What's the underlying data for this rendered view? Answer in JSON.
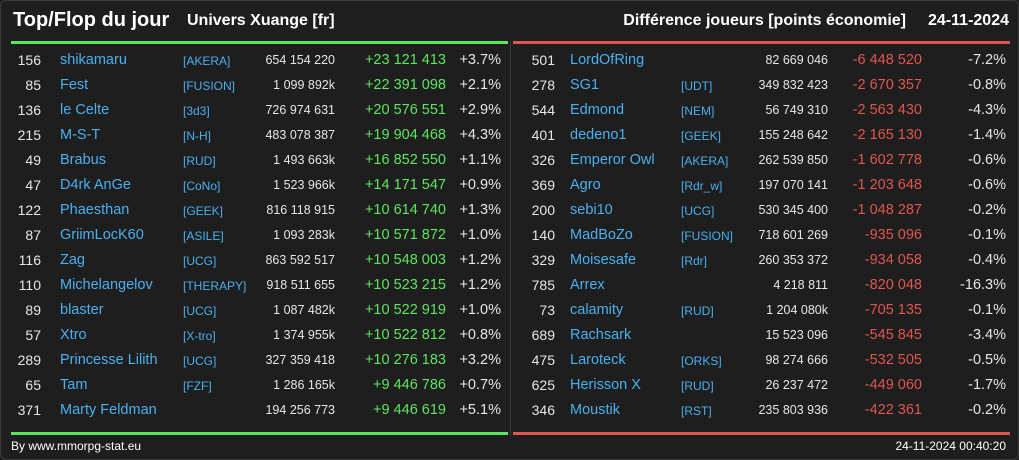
{
  "header": {
    "title": "Top/Flop du jour",
    "universe": "Univers Xuange [fr]",
    "subtitle": "Différence joueurs [points économie]",
    "date": "24-11-2024"
  },
  "colors": {
    "gain": "#5de65d",
    "loss": "#e05550",
    "name": "#4ab0ef",
    "background": "#1e1e1e"
  },
  "top": [
    {
      "rank": "156",
      "name": "shikamaru",
      "ally": "[AKERA]",
      "points": "654 154 220",
      "delta": "+23 121 413",
      "pct": "+3.7%"
    },
    {
      "rank": "85",
      "name": "Fest",
      "ally": "[FUSION]",
      "points": "1 099 892k",
      "delta": "+22 391 098",
      "pct": "+2.1%"
    },
    {
      "rank": "136",
      "name": "le Celte",
      "ally": "[3d3]",
      "points": "726 974 631",
      "delta": "+20 576 551",
      "pct": "+2.9%"
    },
    {
      "rank": "215",
      "name": "M-S-T",
      "ally": "[N-H]",
      "points": "483 078 387",
      "delta": "+19 904 468",
      "pct": "+4.3%"
    },
    {
      "rank": "49",
      "name": "Brabus",
      "ally": "[RUD]",
      "points": "1 493 663k",
      "delta": "+16 852 550",
      "pct": "+1.1%"
    },
    {
      "rank": "47",
      "name": "D4rk AnGe",
      "ally": "[CoNo]",
      "points": "1 523 966k",
      "delta": "+14 171 547",
      "pct": "+0.9%"
    },
    {
      "rank": "122",
      "name": "Phaesthan",
      "ally": "[GEEK]",
      "points": "816 118 915",
      "delta": "+10 614 740",
      "pct": "+1.3%"
    },
    {
      "rank": "87",
      "name": "GriimLocK60",
      "ally": "[ASILE]",
      "points": "1 093 283k",
      "delta": "+10 571 872",
      "pct": "+1.0%"
    },
    {
      "rank": "116",
      "name": "Zag",
      "ally": "[UCG]",
      "points": "863 592 517",
      "delta": "+10 548 003",
      "pct": "+1.2%"
    },
    {
      "rank": "110",
      "name": "Michelangelov",
      "ally": "[THERAPY]",
      "points": "918 511 655",
      "delta": "+10 523 215",
      "pct": "+1.2%"
    },
    {
      "rank": "89",
      "name": "blaster",
      "ally": "[UCG]",
      "points": "1 087 482k",
      "delta": "+10 522 919",
      "pct": "+1.0%"
    },
    {
      "rank": "57",
      "name": "Xtro",
      "ally": "[X-tro]",
      "points": "1 374 955k",
      "delta": "+10 522 812",
      "pct": "+0.8%"
    },
    {
      "rank": "289",
      "name": "Princesse Lilith",
      "ally": "[UCG]",
      "points": "327 359 418",
      "delta": "+10 276 183",
      "pct": "+3.2%"
    },
    {
      "rank": "65",
      "name": "Tam",
      "ally": "[FZF]",
      "points": "1 286 165k",
      "delta": "+9 446 786",
      "pct": "+0.7%"
    },
    {
      "rank": "371",
      "name": "Marty Feldman",
      "ally": "",
      "points": "194 256 773",
      "delta": "+9 446 619",
      "pct": "+5.1%"
    }
  ],
  "flop": [
    {
      "rank": "501",
      "name": "LordOfRing",
      "ally": "",
      "points": "82 669 046",
      "delta": "-6 448 520",
      "pct": "-7.2%"
    },
    {
      "rank": "278",
      "name": "SG1",
      "ally": "[UDT]",
      "points": "349 832 423",
      "delta": "-2 670 357",
      "pct": "-0.8%"
    },
    {
      "rank": "544",
      "name": "Edmond",
      "ally": "[NEM]",
      "points": "56 749 310",
      "delta": "-2 563 430",
      "pct": "-4.3%"
    },
    {
      "rank": "401",
      "name": "dedeno1",
      "ally": "[GEEK]",
      "points": "155 248 642",
      "delta": "-2 165 130",
      "pct": "-1.4%"
    },
    {
      "rank": "326",
      "name": "Emperor Owl",
      "ally": "[AKERA]",
      "points": "262 539 850",
      "delta": "-1 602 778",
      "pct": "-0.6%"
    },
    {
      "rank": "369",
      "name": "Agro",
      "ally": "[Rdr_w]",
      "points": "197 070 141",
      "delta": "-1 203 648",
      "pct": "-0.6%"
    },
    {
      "rank": "200",
      "name": "sebi10",
      "ally": "[UCG]",
      "points": "530 345 400",
      "delta": "-1 048 287",
      "pct": "-0.2%"
    },
    {
      "rank": "140",
      "name": "MadBoZo",
      "ally": "[FUSION]",
      "points": "718 601 269",
      "delta": "-935 096",
      "pct": "-0.1%"
    },
    {
      "rank": "329",
      "name": "Moisesafe",
      "ally": "[Rdr]",
      "points": "260 353 372",
      "delta": "-934 058",
      "pct": "-0.4%"
    },
    {
      "rank": "785",
      "name": "Arrex",
      "ally": "",
      "points": "4 218 811",
      "delta": "-820 048",
      "pct": "-16.3%"
    },
    {
      "rank": "73",
      "name": "calamity",
      "ally": "[RUD]",
      "points": "1 204 080k",
      "delta": "-705 135",
      "pct": "-0.1%"
    },
    {
      "rank": "689",
      "name": "Rachsark",
      "ally": "",
      "points": "15 523 096",
      "delta": "-545 845",
      "pct": "-3.4%"
    },
    {
      "rank": "475",
      "name": "Laroteck",
      "ally": "[ORKS]",
      "points": "98 274 666",
      "delta": "-532 505",
      "pct": "-0.5%"
    },
    {
      "rank": "625",
      "name": "Herisson X",
      "ally": "[RUD]",
      "points": "26 237 472",
      "delta": "-449 060",
      "pct": "-1.7%"
    },
    {
      "rank": "346",
      "name": "Moustik",
      "ally": "[RST]",
      "points": "235 803 936",
      "delta": "-422 361",
      "pct": "-0.2%"
    }
  ],
  "footer": {
    "credit": "By www.mmorpg-stat.eu",
    "timestamp": "24-11-2024 00:40:20"
  }
}
